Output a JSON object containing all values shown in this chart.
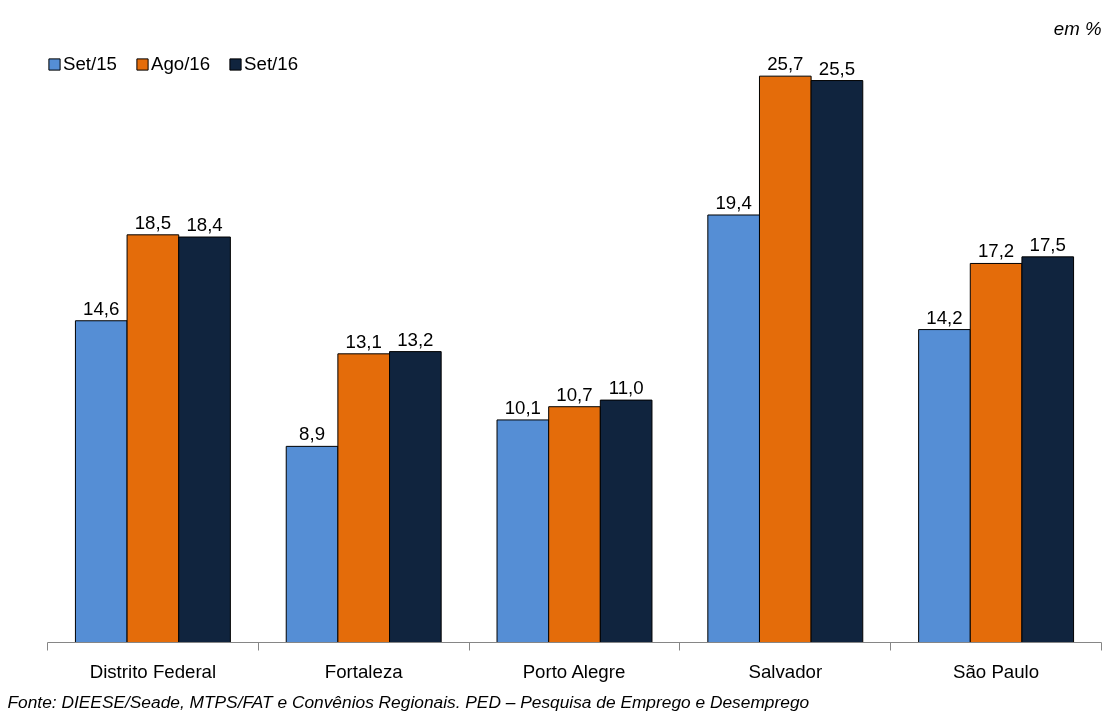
{
  "chart_data": {
    "type": "bar",
    "categories": [
      "Distrito Federal",
      "Fortaleza",
      "Porto Alegre",
      "Salvador",
      "São Paulo"
    ],
    "series": [
      {
        "name": "Set/15",
        "color": "#558ed5",
        "values": [
          14.6,
          8.9,
          10.1,
          19.4,
          14.2
        ],
        "value_labels": [
          "14,6",
          "8,9",
          "10,1",
          "19,4",
          "14,2"
        ]
      },
      {
        "name": "Ago/16",
        "color": "#e46c0a",
        "values": [
          18.5,
          13.1,
          10.7,
          25.7,
          17.2
        ],
        "value_labels": [
          "18,5",
          "13,1",
          "10,7",
          "25,7",
          "17,2"
        ]
      },
      {
        "name": "Set/16",
        "color": "#10243e",
        "values": [
          18.4,
          13.2,
          11.0,
          25.5,
          17.5
        ],
        "value_labels": [
          "18,4",
          "13,2",
          "11,0",
          "25,5",
          "17,5"
        ]
      }
    ],
    "tick_labels": "x",
    "grid": false,
    "legend": "top left",
    "annotations": [
      "em %",
      "Fonte: DIEESE/Seade, MTPS/FAT e Convênios Regionais. PED – Pesquisa de Emprego e Desemprego"
    ]
  }
}
